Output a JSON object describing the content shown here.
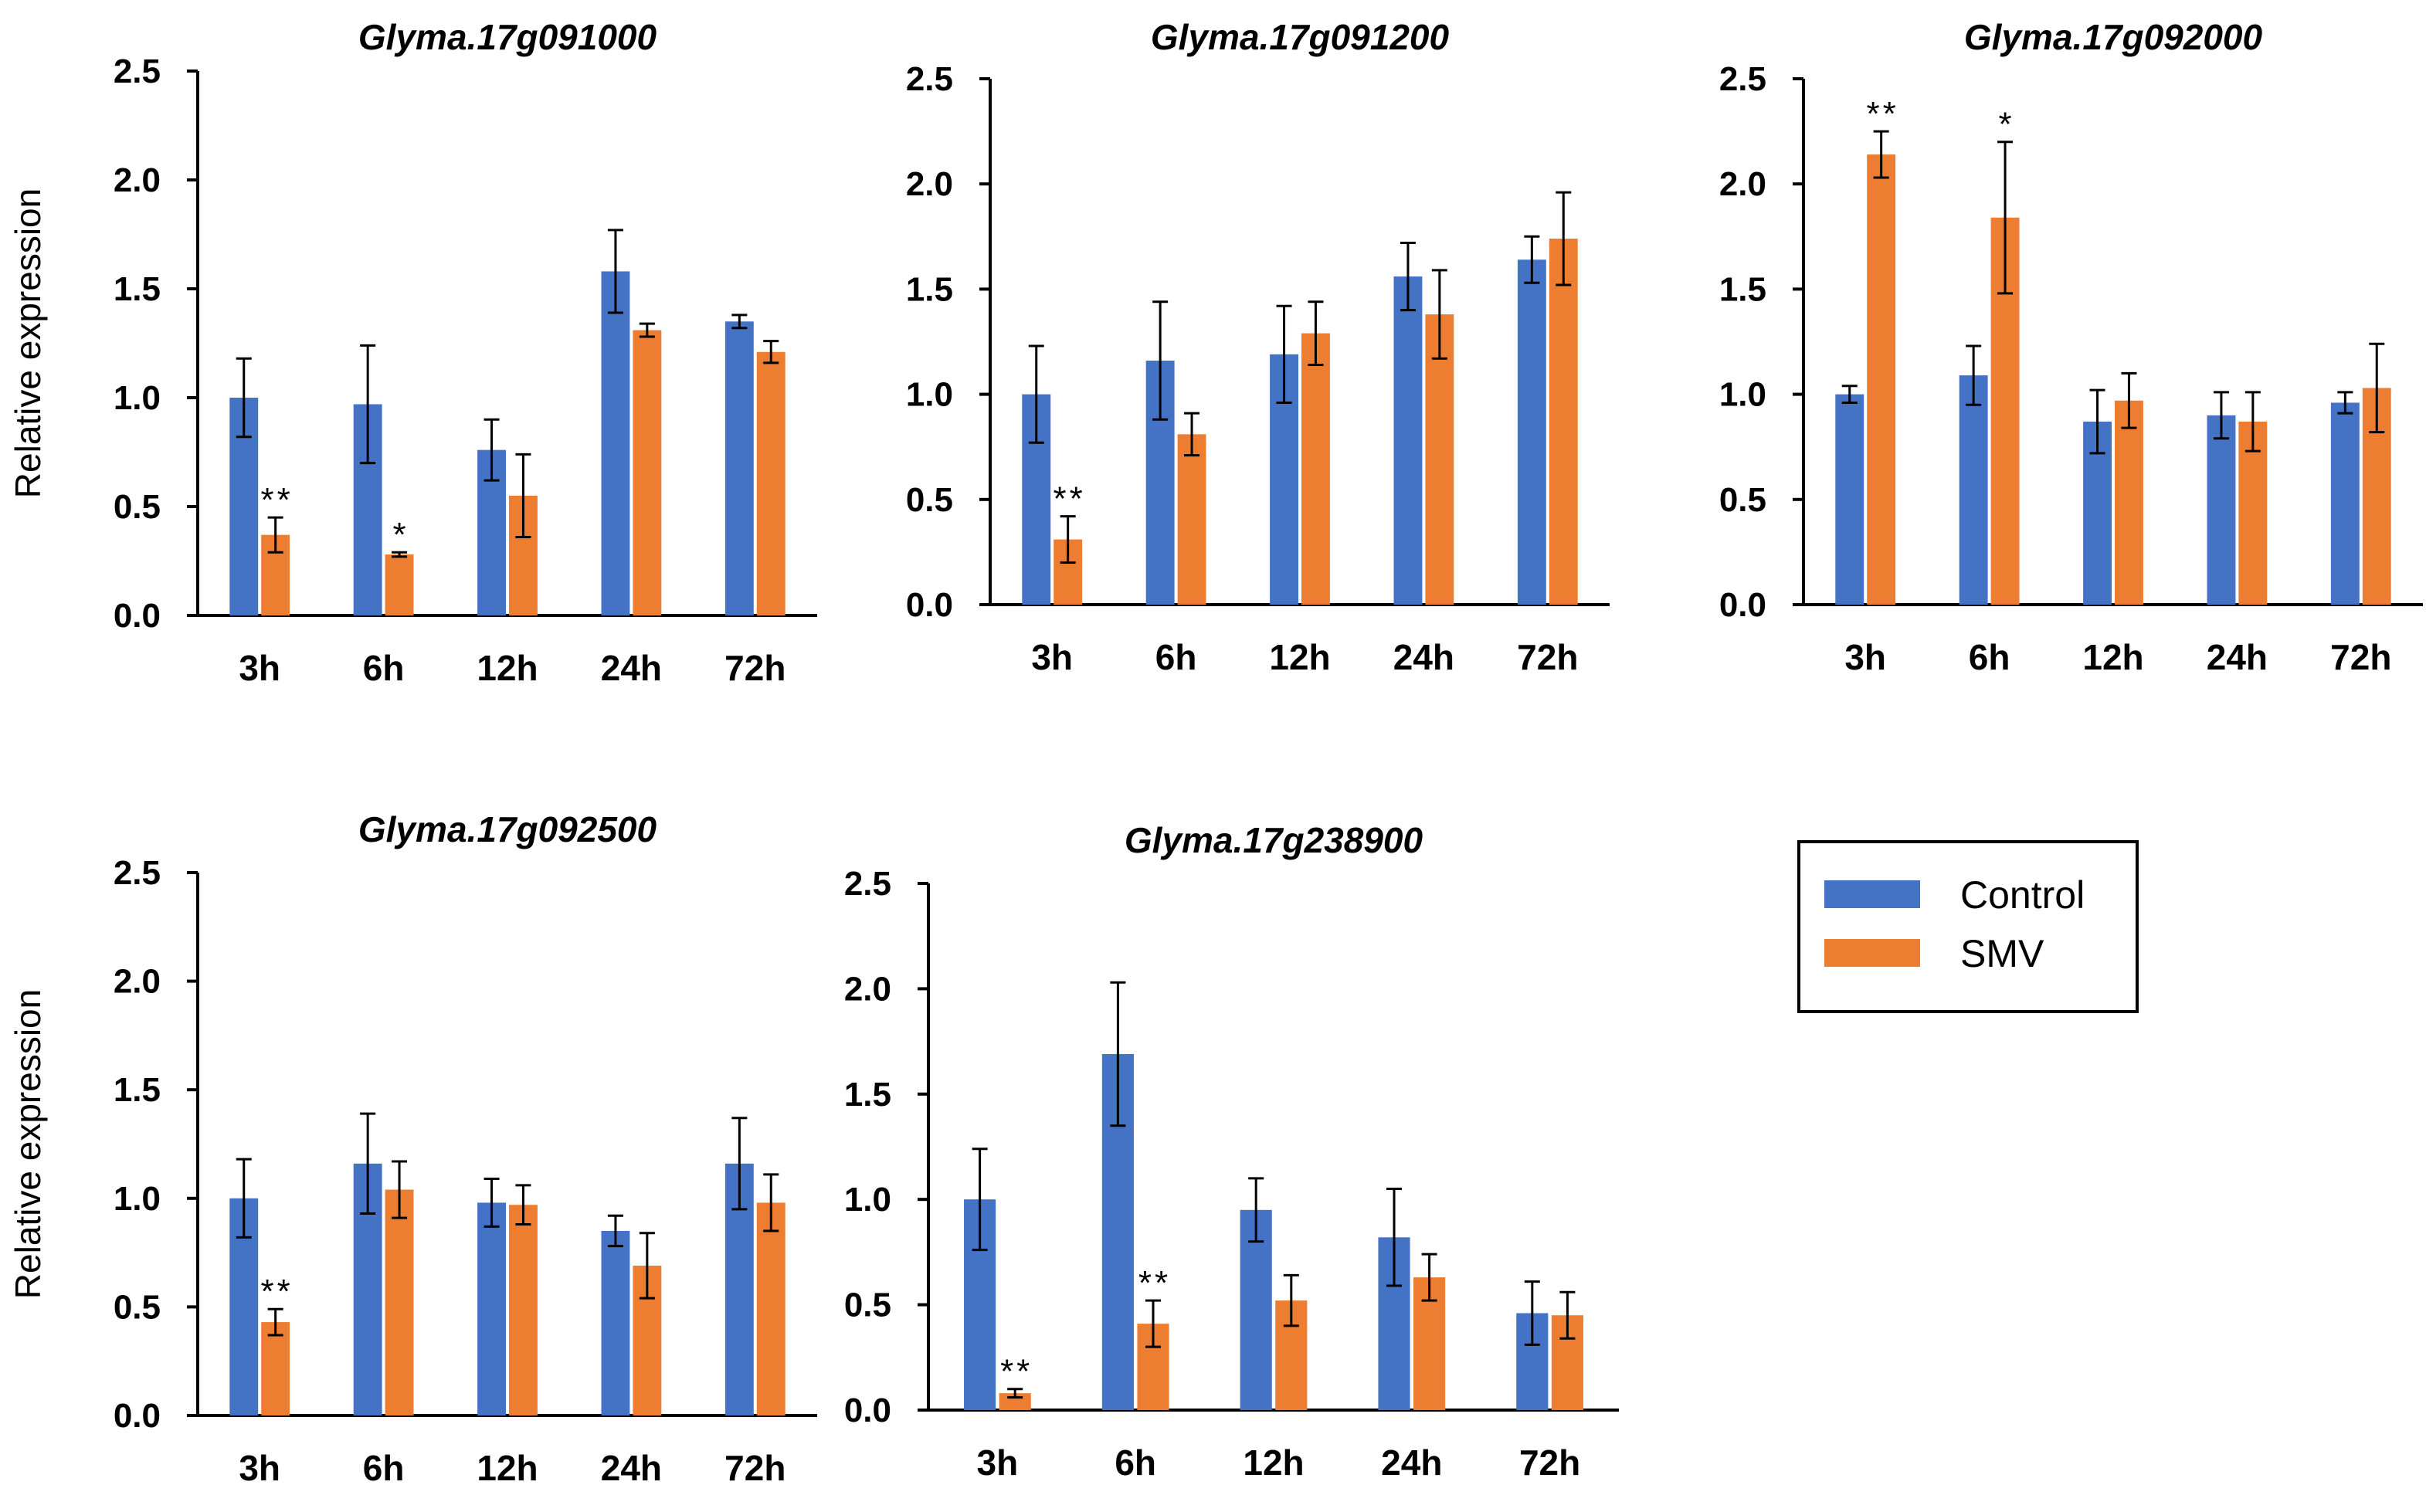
{
  "colors": {
    "control": "#4472C4",
    "smv": "#ED7D31",
    "axis": "#000000"
  },
  "legend": {
    "control_label": "Control",
    "smv_label": "SMV"
  },
  "chart_data": [
    {
      "type": "bar",
      "title": "Glyma.17g091000",
      "ylabel": "Relative expression",
      "ylim": [
        0,
        2.5
      ],
      "yticks": [
        "0.0",
        "0.5",
        "1.0",
        "1.5",
        "2.0",
        "2.5"
      ],
      "categories": [
        "3h",
        "6h",
        "12h",
        "24h",
        "72h"
      ],
      "series": [
        {
          "name": "Control",
          "values": [
            1.0,
            0.97,
            0.76,
            1.58,
            1.35
          ],
          "errors": [
            0.18,
            0.27,
            0.14,
            0.19,
            0.03
          ]
        },
        {
          "name": "SMV",
          "values": [
            0.37,
            0.28,
            0.55,
            1.31,
            1.21
          ],
          "errors": [
            0.08,
            0.01,
            0.19,
            0.03,
            0.05
          ]
        }
      ],
      "significance": [
        {
          "category": "3h",
          "series": "SMV",
          "label": "**"
        },
        {
          "category": "6h",
          "series": "SMV",
          "label": "*"
        }
      ]
    },
    {
      "type": "bar",
      "title": "Glyma.17g091200",
      "ylabel": "",
      "ylim": [
        0,
        2.5
      ],
      "yticks": [
        "0.0",
        "0.5",
        "1.0",
        "1.5",
        "2.0",
        "2.5"
      ],
      "categories": [
        "3h",
        "6h",
        "12h",
        "24h",
        "72h"
      ],
      "series": [
        {
          "name": "Control",
          "values": [
            1.0,
            1.16,
            1.19,
            1.56,
            1.64
          ],
          "errors": [
            0.23,
            0.28,
            0.23,
            0.16,
            0.11
          ]
        },
        {
          "name": "SMV",
          "values": [
            0.31,
            0.81,
            1.29,
            1.38,
            1.74
          ],
          "errors": [
            0.11,
            0.1,
            0.15,
            0.21,
            0.22
          ]
        }
      ],
      "significance": [
        {
          "category": "3h",
          "series": "SMV",
          "label": "**"
        }
      ]
    },
    {
      "type": "bar",
      "title": "Glyma.17g092000",
      "ylabel": "",
      "ylim": [
        0,
        2.5
      ],
      "yticks": [
        "0.0",
        "0.5",
        "1.0",
        "1.5",
        "2.0",
        "2.5"
      ],
      "categories": [
        "3h",
        "6h",
        "12h",
        "24h",
        "72h"
      ],
      "series": [
        {
          "name": "Control",
          "values": [
            1.0,
            1.09,
            0.87,
            0.9,
            0.96
          ],
          "errors": [
            0.04,
            0.14,
            0.15,
            0.11,
            0.05
          ]
        },
        {
          "name": "SMV",
          "values": [
            2.14,
            1.84,
            0.97,
            0.87,
            1.03
          ],
          "errors": [
            0.11,
            0.36,
            0.13,
            0.14,
            0.21
          ]
        }
      ],
      "significance": [
        {
          "category": "3h",
          "series": "SMV",
          "label": "**"
        },
        {
          "category": "6h",
          "series": "SMV",
          "label": "*"
        }
      ]
    },
    {
      "type": "bar",
      "title": "Glyma.17g092500",
      "ylabel": "Relative expression",
      "ylim": [
        0,
        2.5
      ],
      "yticks": [
        "0.0",
        "0.5",
        "1.0",
        "1.5",
        "2.0",
        "2.5"
      ],
      "categories": [
        "3h",
        "6h",
        "12h",
        "24h",
        "72h"
      ],
      "series": [
        {
          "name": "Control",
          "values": [
            1.0,
            1.16,
            0.98,
            0.85,
            1.16
          ],
          "errors": [
            0.18,
            0.23,
            0.11,
            0.07,
            0.21
          ]
        },
        {
          "name": "SMV",
          "values": [
            0.43,
            1.04,
            0.97,
            0.69,
            0.98
          ],
          "errors": [
            0.06,
            0.13,
            0.09,
            0.15,
            0.13
          ]
        }
      ],
      "significance": [
        {
          "category": "3h",
          "series": "SMV",
          "label": "**"
        }
      ]
    },
    {
      "type": "bar",
      "title": "Glyma.17g238900",
      "ylabel": "",
      "ylim": [
        0,
        2.5
      ],
      "yticks": [
        "0.0",
        "0.5",
        "1.0",
        "1.5",
        "2.0",
        "2.5"
      ],
      "categories": [
        "3h",
        "6h",
        "12h",
        "24h",
        "72h"
      ],
      "series": [
        {
          "name": "Control",
          "values": [
            1.0,
            1.69,
            0.95,
            0.82,
            0.46
          ],
          "errors": [
            0.24,
            0.34,
            0.15,
            0.23,
            0.15
          ]
        },
        {
          "name": "SMV",
          "values": [
            0.08,
            0.41,
            0.52,
            0.63,
            0.45
          ],
          "errors": [
            0.02,
            0.11,
            0.12,
            0.11,
            0.11
          ]
        }
      ],
      "significance": [
        {
          "category": "3h",
          "series": "SMV",
          "label": "**"
        },
        {
          "category": "6h",
          "series": "SMV",
          "label": "**"
        }
      ]
    }
  ]
}
